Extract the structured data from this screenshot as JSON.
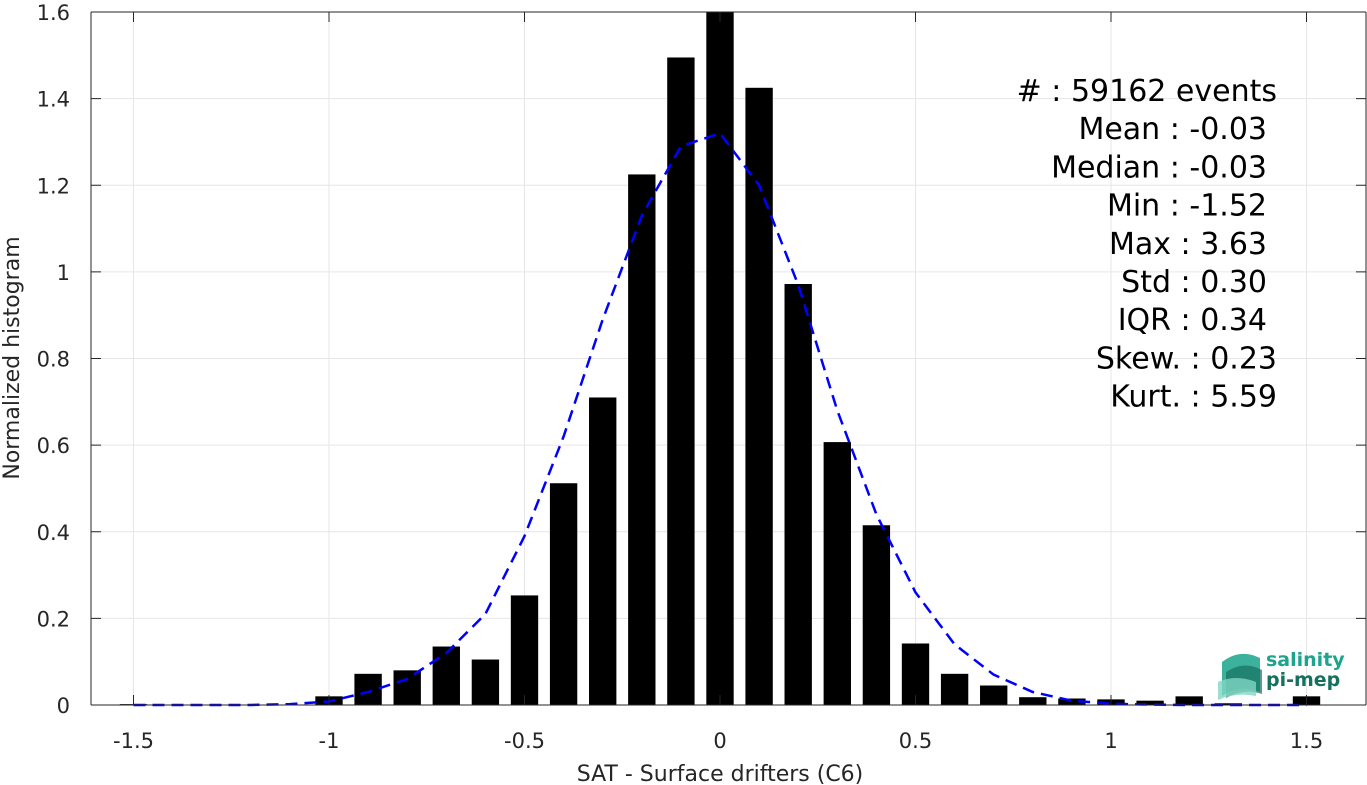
{
  "chart_data": {
    "type": "bar",
    "xlabel": "SAT - Surface drifters (C6)",
    "ylabel": "Normalized histogram",
    "xlim": [
      -1.6,
      1.6
    ],
    "ylim": [
      0,
      1.6
    ],
    "grid": true,
    "xticks": [
      -1.5,
      -1,
      -0.5,
      0,
      0.5,
      1,
      1.5
    ],
    "xtick_labels": [
      "-1.5",
      "-1",
      "-0.5",
      "0",
      "0.5",
      "1",
      "1.5"
    ],
    "yticks": [
      0,
      0.2,
      0.4,
      0.6,
      0.8,
      1,
      1.2,
      1.4,
      1.6
    ],
    "ytick_labels": [
      "0",
      "0.2",
      "0.4",
      "0.6",
      "0.8",
      "1",
      "1.2",
      "1.4",
      "1.6"
    ],
    "bar_color": "#000000",
    "bar_width": 0.07,
    "bins": [
      {
        "x": -1.5,
        "y": 0.002
      },
      {
        "x": -1.4,
        "y": 0.0
      },
      {
        "x": -1.3,
        "y": 0.0
      },
      {
        "x": -1.2,
        "y": 0.0
      },
      {
        "x": -1.1,
        "y": 0.0
      },
      {
        "x": -1.0,
        "y": 0.02
      },
      {
        "x": -0.9,
        "y": 0.072
      },
      {
        "x": -0.8,
        "y": 0.08
      },
      {
        "x": -0.7,
        "y": 0.135
      },
      {
        "x": -0.6,
        "y": 0.105
      },
      {
        "x": -0.5,
        "y": 0.253
      },
      {
        "x": -0.4,
        "y": 0.512
      },
      {
        "x": -0.3,
        "y": 0.71
      },
      {
        "x": -0.2,
        "y": 1.225
      },
      {
        "x": -0.1,
        "y": 1.495
      },
      {
        "x": 0.0,
        "y": 1.6
      },
      {
        "x": 0.1,
        "y": 1.425
      },
      {
        "x": 0.2,
        "y": 0.972
      },
      {
        "x": 0.3,
        "y": 0.607
      },
      {
        "x": 0.4,
        "y": 0.415
      },
      {
        "x": 0.5,
        "y": 0.142
      },
      {
        "x": 0.6,
        "y": 0.072
      },
      {
        "x": 0.7,
        "y": 0.045
      },
      {
        "x": 0.8,
        "y": 0.018
      },
      {
        "x": 0.9,
        "y": 0.015
      },
      {
        "x": 1.0,
        "y": 0.013
      },
      {
        "x": 1.1,
        "y": 0.01
      },
      {
        "x": 1.2,
        "y": 0.02
      },
      {
        "x": 1.3,
        "y": 0.004
      },
      {
        "x": 1.4,
        "y": 0.0
      },
      {
        "x": 1.5,
        "y": 0.02
      }
    ],
    "fit_curve": {
      "color": "#0000ff",
      "style": "dashed",
      "x": [
        -1.5,
        -1.4,
        -1.3,
        -1.2,
        -1.1,
        -1.0,
        -0.9,
        -0.8,
        -0.7,
        -0.6,
        -0.5,
        -0.4,
        -0.3,
        -0.2,
        -0.1,
        0.0,
        0.1,
        0.2,
        0.3,
        0.4,
        0.5,
        0.6,
        0.7,
        0.8,
        0.9,
        1.0,
        1.1,
        1.2,
        1.3,
        1.4,
        1.5
      ],
      "y": [
        0.0,
        0.0,
        0.0,
        0.0,
        0.002,
        0.008,
        0.03,
        0.06,
        0.12,
        0.21,
        0.39,
        0.62,
        0.89,
        1.13,
        1.29,
        1.32,
        1.2,
        0.97,
        0.68,
        0.44,
        0.26,
        0.14,
        0.07,
        0.03,
        0.01,
        0.003,
        0.001,
        0.0,
        0.0,
        0.0,
        0.0
      ]
    },
    "stats": [
      {
        "label": "#  : 59162 events",
        "indent": 0
      },
      {
        "label": "Mean : -0.03",
        "indent": 1
      },
      {
        "label": "Median : -0.03",
        "indent": 1
      },
      {
        "label": "Min : -1.52",
        "indent": 1
      },
      {
        "label": "Max : 3.63",
        "indent": 1
      },
      {
        "label": "Std : 0.30",
        "indent": 1
      },
      {
        "label": "IQR : 0.34",
        "indent": 1
      },
      {
        "label": "Skew. : 0.23",
        "indent": 0
      },
      {
        "label": "Kurt. : 5.59",
        "indent": 0
      }
    ]
  },
  "logo": {
    "line1": "salinity",
    "line2": "pi-mep",
    "color_primary": "#1aa58c",
    "color_secondary": "#15705f"
  },
  "colors": {
    "grid": "#e6e6e6",
    "axis": "#262626"
  }
}
